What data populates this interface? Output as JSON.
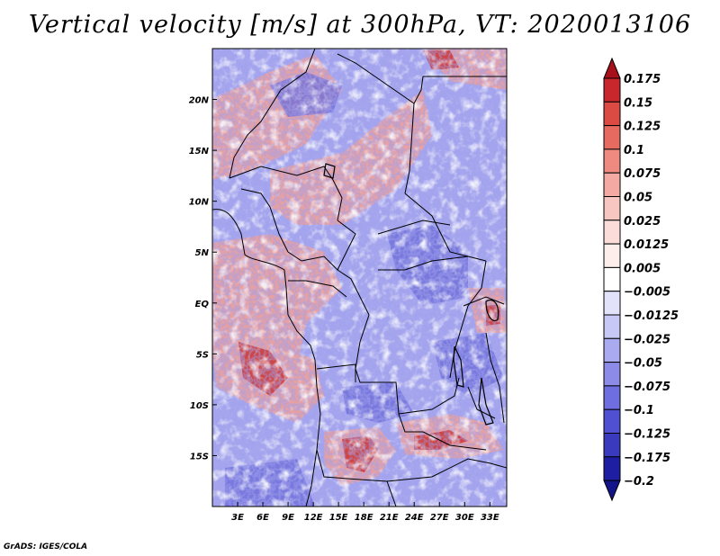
{
  "title": "Vertical velocity [m/s] at 300hPa, VT: 2020013106",
  "footer": "GrADS: IGES/COLA",
  "map": {
    "lon_range": [
      0,
      35
    ],
    "lat_range": [
      -20,
      25
    ],
    "lat_ticks": [
      {
        "value": 20,
        "label": "20N"
      },
      {
        "value": 15,
        "label": "15N"
      },
      {
        "value": 10,
        "label": "10N"
      },
      {
        "value": 5,
        "label": "5N"
      },
      {
        "value": 0,
        "label": "EQ"
      },
      {
        "value": -5,
        "label": "5S"
      },
      {
        "value": -10,
        "label": "10S"
      },
      {
        "value": -15,
        "label": "15S"
      }
    ],
    "lon_ticks": [
      {
        "value": 3,
        "label": "3E"
      },
      {
        "value": 6,
        "label": "6E"
      },
      {
        "value": 9,
        "label": "9E"
      },
      {
        "value": 12,
        "label": "12E"
      },
      {
        "value": 15,
        "label": "15E"
      },
      {
        "value": 18,
        "label": "18E"
      },
      {
        "value": 21,
        "label": "21E"
      },
      {
        "value": 24,
        "label": "24E"
      },
      {
        "value": 27,
        "label": "27E"
      },
      {
        "value": 30,
        "label": "30E"
      },
      {
        "value": 33,
        "label": "33E"
      }
    ]
  },
  "colorbar": {
    "levels": [
      "0.175",
      "0.15",
      "0.125",
      "0.1",
      "0.075",
      "0.05",
      "0.025",
      "0.0125",
      "0.005",
      "-0.005",
      "-0.0125",
      "-0.025",
      "-0.05",
      "-0.075",
      "-0.1",
      "-0.125",
      "-0.175",
      "-0.2"
    ],
    "colors": [
      "#a8101c",
      "#c8282c",
      "#dc4a44",
      "#e66a60",
      "#ee8a80",
      "#f4aaa2",
      "#f8c6c0",
      "#fbdcd8",
      "#fdeeec",
      "#ffffff",
      "#e2e2fa",
      "#c8c8f6",
      "#aaaaf0",
      "#8c8ce8",
      "#6e6ee0",
      "#5050d2",
      "#3a3abe",
      "#1e1ea2",
      "#14148a"
    ]
  }
}
